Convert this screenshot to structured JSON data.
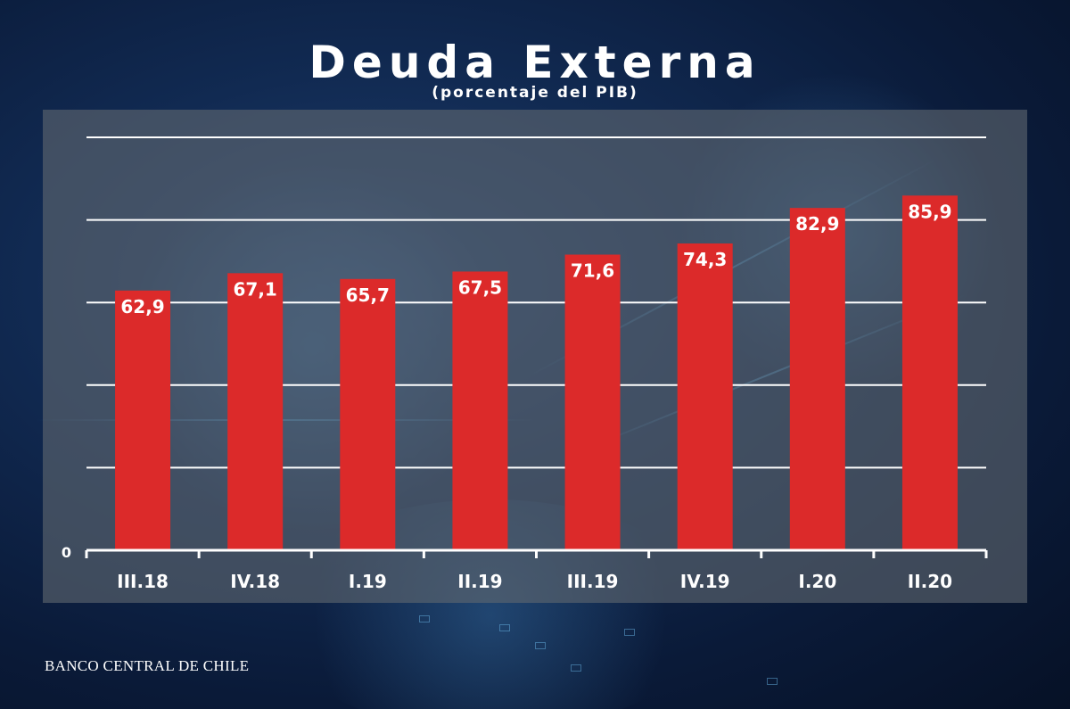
{
  "title": "Deuda Externa",
  "subtitle": "(porcentaje del PIB)",
  "footer": "BANCO CENTRAL DE CHILE",
  "colors": {
    "bar": "#dc2a2a",
    "grid": "#ffffff",
    "text": "#ffffff"
  },
  "chart_data": {
    "type": "bar",
    "title": "Deuda Externa",
    "subtitle": "(porcentaje del PIB)",
    "xlabel": "",
    "ylabel": "",
    "categories": [
      "III.18",
      "IV.18",
      "I.19",
      "II.19",
      "III.19",
      "IV.19",
      "I.20",
      "II.20"
    ],
    "values": [
      62.9,
      67.1,
      65.7,
      67.5,
      71.6,
      74.3,
      82.9,
      85.9
    ],
    "value_labels": [
      "62,9",
      "67,1",
      "65,7",
      "67,5",
      "71,6",
      "74,3",
      "82,9",
      "85,9"
    ],
    "y_tick_labels": [
      "0"
    ],
    "ylim": [
      0,
      100
    ],
    "y_gridlines": [
      20,
      40,
      60,
      80,
      100
    ],
    "grid": true,
    "legend": "none"
  }
}
